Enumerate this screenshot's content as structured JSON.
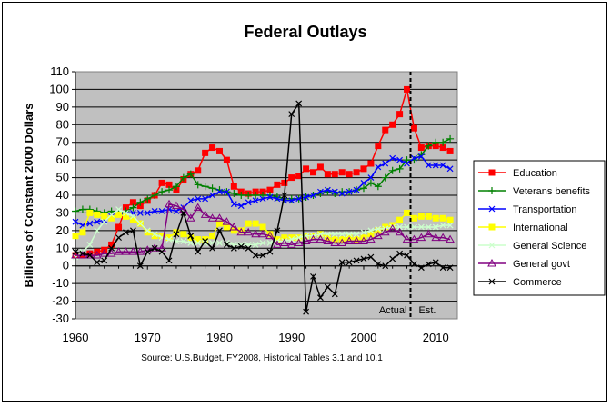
{
  "chart_data": {
    "type": "line",
    "title": "Federal Outlays",
    "ylabel": "Billions of Constant 2000 Dollars",
    "xlabel": "",
    "source": "Source: U.S.Budget, FY2008, Historical Tables 3.1 and 10.1",
    "xlim": [
      1960,
      2013
    ],
    "ylim": [
      -30,
      110
    ],
    "xticks": [
      1960,
      1970,
      1980,
      1990,
      2000,
      2010
    ],
    "yticks": [
      -30,
      -20,
      -10,
      0,
      10,
      20,
      30,
      40,
      50,
      60,
      70,
      80,
      90,
      100,
      110
    ],
    "divider": {
      "x": 2006.5,
      "left_label": "Actual",
      "right_label": "Est."
    },
    "grid": "horizontal",
    "plot_background": "#c0c0c0",
    "legend_position": "right",
    "x": [
      1960,
      1961,
      1962,
      1963,
      1964,
      1965,
      1966,
      1967,
      1968,
      1969,
      1970,
      1971,
      1972,
      1973,
      1974,
      1975,
      1976,
      1977,
      1978,
      1979,
      1980,
      1981,
      1982,
      1983,
      1984,
      1985,
      1986,
      1987,
      1988,
      1989,
      1990,
      1991,
      1992,
      1993,
      1994,
      1995,
      1996,
      1997,
      1998,
      1999,
      2000,
      2001,
      2002,
      2003,
      2004,
      2005,
      2006,
      2007,
      2008,
      2009,
      2010,
      2011,
      2012
    ],
    "series": [
      {
        "name": "Education",
        "color": "#ff0000",
        "marker": "square",
        "values": [
          6,
          6,
          7,
          8,
          9,
          12,
          22,
          33,
          36,
          34,
          37,
          40,
          47,
          46,
          43,
          49,
          52,
          54,
          64,
          67,
          65,
          60,
          45,
          42,
          41,
          42,
          42,
          43,
          46,
          47,
          50,
          51,
          55,
          53,
          56,
          52,
          52,
          53,
          52,
          53,
          55,
          58,
          68,
          77,
          80,
          86,
          100,
          78,
          67,
          68,
          68,
          67,
          65
        ]
      },
      {
        "name": "Veterans benefits",
        "color": "#008000",
        "marker": "plus",
        "values": [
          31,
          32,
          32,
          31,
          30,
          31,
          30,
          31,
          33,
          36,
          38,
          40,
          42,
          43,
          45,
          50,
          52,
          46,
          45,
          44,
          43,
          42,
          41,
          40,
          40,
          40,
          40,
          40,
          39,
          38,
          38,
          38,
          39,
          40,
          41,
          42,
          41,
          42,
          42,
          43,
          44,
          47,
          45,
          50,
          54,
          55,
          60,
          60,
          63,
          68,
          70,
          70,
          72
        ]
      },
      {
        "name": "Transportation",
        "color": "#0000ff",
        "marker": "x",
        "values": [
          25,
          23,
          24,
          25,
          26,
          28,
          29,
          30,
          30,
          30,
          30,
          31,
          31,
          32,
          31,
          33,
          37,
          38,
          38,
          40,
          42,
          42,
          35,
          34,
          36,
          37,
          38,
          39,
          38,
          37,
          37,
          38,
          39,
          40,
          42,
          43,
          42,
          41,
          42,
          43,
          47,
          50,
          56,
          58,
          61,
          60,
          58,
          61,
          62,
          57,
          57,
          57,
          55
        ]
      },
      {
        "name": "International",
        "color": "#ffff00",
        "marker": "square",
        "values": [
          17,
          19,
          30,
          29,
          28,
          27,
          29,
          28,
          26,
          24,
          19,
          17,
          17,
          16,
          19,
          18,
          16,
          15,
          15,
          17,
          24,
          22,
          20,
          20,
          24,
          24,
          22,
          18,
          15,
          16,
          16,
          16,
          17,
          17,
          18,
          16,
          15,
          15,
          16,
          15,
          16,
          18,
          20,
          22,
          23,
          26,
          30,
          27,
          28,
          28,
          27,
          27,
          26
        ]
      },
      {
        "name": "General Science",
        "color": "#ccffcc",
        "marker": "x",
        "values": [
          5,
          8,
          12,
          20,
          25,
          29,
          32,
          30,
          28,
          24,
          20,
          18,
          16,
          15,
          14,
          14,
          13,
          13,
          13,
          13,
          13,
          13,
          12,
          12,
          12,
          12,
          13,
          13,
          14,
          14,
          15,
          16,
          17,
          17,
          18,
          18,
          18,
          18,
          18,
          18,
          19,
          20,
          21,
          21,
          22,
          22,
          22,
          22,
          22,
          22,
          22,
          23,
          23
        ]
      },
      {
        "name": "General govt",
        "color": "#800080",
        "marker": "triangle",
        "values": [
          6,
          6,
          6,
          6,
          7,
          7,
          8,
          8,
          8,
          8,
          9,
          10,
          10,
          35,
          34,
          32,
          27,
          33,
          29,
          27,
          27,
          25,
          22,
          19,
          19,
          18,
          18,
          17,
          12,
          13,
          12,
          13,
          14,
          15,
          15,
          14,
          13,
          13,
          14,
          14,
          14,
          15,
          17,
          19,
          21,
          19,
          15,
          15,
          16,
          18,
          16,
          16,
          15
        ]
      },
      {
        "name": "Commerce",
        "color": "#000000",
        "marker": "x",
        "values": [
          8,
          7,
          6,
          2,
          3,
          10,
          16,
          19,
          20,
          0,
          8,
          10,
          8,
          3,
          18,
          30,
          17,
          8,
          14,
          10,
          20,
          12,
          10,
          11,
          10,
          6,
          6,
          8,
          20,
          40,
          86,
          92,
          -26,
          -6,
          -18,
          -12,
          -16,
          2,
          2,
          3,
          4,
          5,
          1,
          0,
          4,
          7,
          6,
          1,
          -1,
          1,
          2,
          -1,
          -1
        ]
      }
    ]
  }
}
